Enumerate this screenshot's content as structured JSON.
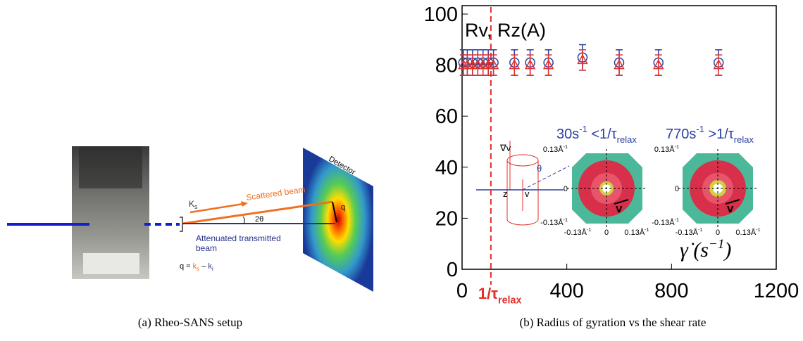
{
  "setup": {
    "detector": "Detector",
    "ks": "K",
    "ks_sub": "s",
    "scattered": "Scattered beam",
    "angle": "2θ",
    "q": "q",
    "transmitted": [
      "Attenuated transmitted",
      "beam"
    ],
    "equation": [
      "q = ",
      "k",
      "s",
      " – ",
      "k",
      "i"
    ]
  },
  "captions": [
    "(a) Rheo-SANS setup",
    "(b) Radius of gyration vs the shear rate"
  ],
  "chart_data": {
    "type": "scatter",
    "y_label": "Rv, Rz(A)",
    "x_label": {
      "text": "γ̇ (s",
      "sup": "−1",
      "close": ")"
    },
    "x": [
      5,
      20,
      40,
      60,
      80,
      100,
      120,
      200,
      260,
      330,
      460,
      600,
      750,
      980
    ],
    "series": [
      {
        "name": "Rv",
        "color": "#2b3fa0",
        "marker": "circle",
        "values": [
          81,
          81,
          81,
          81,
          81,
          81,
          81,
          81,
          81,
          81,
          83,
          81,
          81,
          81
        ],
        "errors": [
          5,
          5,
          5,
          5,
          5,
          5,
          5,
          5,
          5,
          5,
          5,
          5,
          5,
          5
        ]
      },
      {
        "name": "Rz",
        "color": "#e0302a",
        "marker": "triangle",
        "values": [
          80,
          80,
          80,
          80,
          80,
          80,
          80,
          80,
          80,
          80,
          82,
          80,
          80,
          80
        ],
        "errors": [
          4,
          4,
          4,
          4,
          4,
          4,
          4,
          4,
          4,
          4,
          4,
          4,
          4,
          4
        ]
      }
    ],
    "xlim": [
      0,
      1200
    ],
    "xticks": [
      0,
      400,
      800,
      1200
    ],
    "ylim": [
      0,
      100
    ],
    "yticks": [
      0,
      20,
      40,
      60,
      80,
      100
    ],
    "relax_line": {
      "x": 110,
      "color": "#e0302a",
      "label": "1/τ",
      "label_sub": "relax"
    },
    "flow_diagram": [
      "∇v",
      "z",
      "v",
      "θ"
    ],
    "insets": [
      {
        "title": [
          "30s",
          "-1",
          " <1/τ",
          "relax"
        ],
        "labels": [
          [
            "0.13Å",
            "-1"
          ],
          [
            "0"
          ],
          [
            "-0.13Å",
            "-1"
          ],
          [
            "-0.13Å",
            "-1"
          ],
          [
            "0"
          ],
          [
            "0.13Å",
            "-1"
          ]
        ],
        "vector": "v"
      },
      {
        "title": [
          "770s",
          "-1",
          " >1/τ",
          "relax"
        ],
        "labels": [
          [
            "0.13Å",
            "-1"
          ],
          [
            "0"
          ],
          [
            "-0.13Å",
            "-1"
          ],
          [
            "-0.13Å",
            "-1"
          ],
          [
            "0"
          ],
          [
            "0.13Å",
            "-1"
          ]
        ],
        "vector": "v"
      }
    ]
  }
}
